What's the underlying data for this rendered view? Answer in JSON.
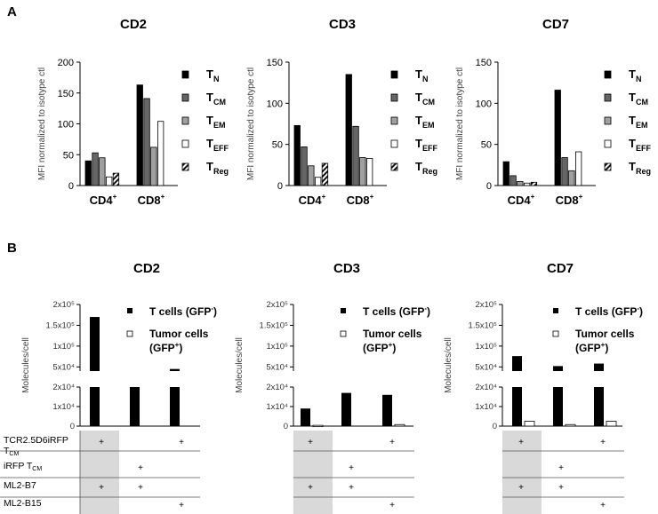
{
  "panel_a": {
    "letter": "A"
  },
  "panel_b": {
    "letter": "B"
  },
  "chart_data": [
    {
      "panel": "A",
      "type": "bar",
      "title": "CD2",
      "ylabel": "MFI normalized to isotype ctl",
      "ylim": [
        0,
        200
      ],
      "yticks": [
        0,
        50,
        100,
        150,
        200
      ],
      "categories": [
        "CD4",
        "CD8"
      ],
      "series": [
        {
          "name": "TN",
          "values": [
            40,
            163
          ]
        },
        {
          "name": "TCM",
          "values": [
            53,
            141
          ]
        },
        {
          "name": "TEM",
          "values": [
            45,
            62
          ]
        },
        {
          "name": "TEFF",
          "values": [
            14,
            104
          ]
        },
        {
          "name": "TReg",
          "values": [
            20,
            null
          ]
        }
      ]
    },
    {
      "panel": "A",
      "type": "bar",
      "title": "CD3",
      "ylabel": "MFI normalized to isotype ctl",
      "ylim": [
        0,
        150
      ],
      "yticks": [
        0,
        50,
        100,
        150
      ],
      "categories": [
        "CD4",
        "CD8"
      ],
      "series": [
        {
          "name": "TN",
          "values": [
            73,
            135
          ]
        },
        {
          "name": "TCM",
          "values": [
            47,
            72
          ]
        },
        {
          "name": "TEM",
          "values": [
            24,
            34
          ]
        },
        {
          "name": "TEFF",
          "values": [
            10,
            33
          ]
        },
        {
          "name": "TReg",
          "values": [
            27,
            null
          ]
        }
      ]
    },
    {
      "panel": "A",
      "type": "bar",
      "title": "CD7",
      "ylabel": "MFI normalized to isotype ctl",
      "ylim": [
        0,
        150
      ],
      "yticks": [
        0,
        50,
        100,
        150
      ],
      "categories": [
        "CD4",
        "CD8"
      ],
      "series": [
        {
          "name": "TN",
          "values": [
            29,
            116
          ]
        },
        {
          "name": "TCM",
          "values": [
            12,
            34
          ]
        },
        {
          "name": "TEM",
          "values": [
            5,
            18
          ]
        },
        {
          "name": "TEFF",
          "values": [
            3,
            41
          ]
        },
        {
          "name": "TReg",
          "values": [
            4,
            null
          ]
        }
      ]
    },
    {
      "panel": "B",
      "type": "bar",
      "title": "CD2",
      "ylabel": "Molecules/cell",
      "groups": [
        1,
        2,
        3
      ],
      "series": [
        {
          "name": "T cells (GFP-)",
          "values": [
            170000,
            40000,
            45000
          ]
        },
        {
          "name": "Tumor cells (GFP+)",
          "values": [
            0,
            0,
            0
          ]
        }
      ]
    },
    {
      "panel": "B",
      "type": "bar",
      "title": "CD3",
      "ylabel": "Molecules/cell",
      "groups": [
        1,
        2,
        3
      ],
      "series": [
        {
          "name": "T cells (GFP-)",
          "values": [
            9000,
            17000,
            16000
          ]
        },
        {
          "name": "Tumor cells (GFP+)",
          "values": [
            400,
            0,
            800
          ]
        }
      ]
    },
    {
      "panel": "B",
      "type": "bar",
      "title": "CD7",
      "ylabel": "Molecules/cell",
      "groups": [
        1,
        2,
        3
      ],
      "series": [
        {
          "name": "T cells (GFP-)",
          "values": [
            76000,
            52000,
            58000
          ]
        },
        {
          "name": "Tumor cells (GFP+)",
          "values": [
            2500,
            800,
            2500
          ]
        }
      ]
    }
  ],
  "b_axis": {
    "upper_ticks": [
      "2x10⁵",
      "1.5x10⁵",
      "1x10⁵",
      "5x10⁴"
    ],
    "lower_ticks": [
      "2x10⁴",
      "1x10⁴",
      "0"
    ]
  },
  "legend_a": {
    "T_main": "T",
    "subs": [
      "N",
      "CM",
      "EM",
      "EFF",
      "Reg"
    ]
  },
  "legend_b": {
    "t_cells": "T cells (GFP",
    "t_cells_sup": "-",
    "t_cells_end": ")",
    "tumor_line1": "Tumor cells",
    "tumor_line2": "(GFP",
    "tumor_sup": "+",
    "tumor_end": ")"
  },
  "x_labels_a": {
    "cd4": "CD4",
    "cd8": "CD8",
    "sup": "+"
  },
  "conditions": {
    "row_labels": [
      "TCR2.5D6iRFP",
      "iRFP T",
      "ML2-B7",
      "ML2-B15"
    ],
    "row1_sub": "T",
    "row1_sub_small": "CM",
    "row2_sub": "CM",
    "plus": "+",
    "matrix": [
      [
        true,
        false,
        true
      ],
      [
        false,
        true,
        false
      ],
      [
        true,
        true,
        false
      ],
      [
        false,
        false,
        true
      ]
    ]
  }
}
